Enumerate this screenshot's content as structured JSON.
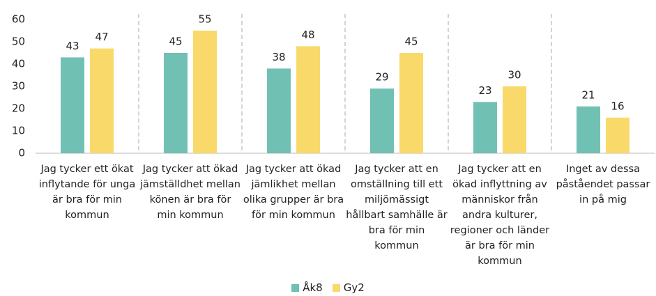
{
  "chart_data": {
    "type": "bar",
    "categories": [
      "Jag tycker ett ökat inflytande för unga är bra för min kommun",
      "Jag tycker att ökad jämställdhet mellan könen är bra för min kommun",
      "Jag tycker att ökad jämlikhet mellan olika grupper är bra för min kommun",
      "Jag tycker att en omställning till ett miljömässigt hållbart samhälle är bra för min kommun",
      "Jag tycker att en ökad inflyttning av människor från andra kulturer, regioner och länder är bra för min kommun",
      "Inget av dessa påståendet passar in på mig"
    ],
    "series": [
      {
        "name": "Åk8",
        "color": "#70c1b3",
        "values": [
          43,
          45,
          38,
          29,
          23,
          21
        ]
      },
      {
        "name": "Gy2",
        "color": "#f9d96a",
        "values": [
          47,
          55,
          48,
          45,
          30,
          16
        ]
      }
    ],
    "ylim": [
      0,
      60
    ],
    "yticks": [
      0,
      10,
      20,
      30,
      40,
      50,
      60
    ],
    "grid": false,
    "legend": "bottom"
  }
}
